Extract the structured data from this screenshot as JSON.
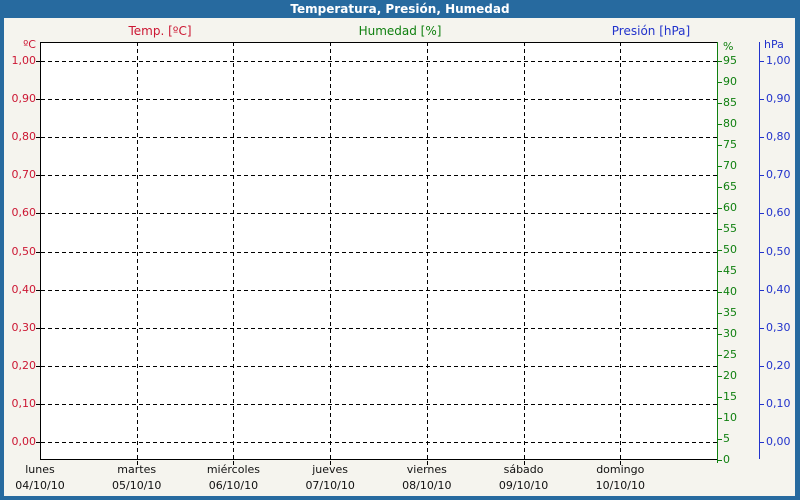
{
  "window": {
    "title": "Temperatura, Presión, Humedad"
  },
  "legend": {
    "temperature": "Temp. [ºC]",
    "humidity": "Humedad [%]",
    "pressure": "Presión [hPa]"
  },
  "axes": {
    "temperature": {
      "unit": "ºC",
      "ticks": [
        "1,00",
        "0,90",
        "0,80",
        "0,70",
        "0,60",
        "0,50",
        "0,40",
        "0,30",
        "0,20",
        "0,10",
        "0,00"
      ]
    },
    "humidity": {
      "unit": "%",
      "ticks": [
        "95",
        "90",
        "85",
        "80",
        "75",
        "70",
        "65",
        "60",
        "55",
        "50",
        "45",
        "40",
        "35",
        "30",
        "25",
        "20",
        "15",
        "10",
        "5",
        "0"
      ]
    },
    "pressure": {
      "unit": "hPa",
      "ticks": [
        "1,00",
        "0,90",
        "0,80",
        "0,70",
        "0,60",
        "0,50",
        "0,40",
        "0,30",
        "0,20",
        "0,10",
        "0,00"
      ]
    }
  },
  "x_axis": {
    "days": [
      {
        "name": "lunes",
        "date": "04/10/10"
      },
      {
        "name": "martes",
        "date": "05/10/10"
      },
      {
        "name": "miércoles",
        "date": "06/10/10"
      },
      {
        "name": "jueves",
        "date": "07/10/10"
      },
      {
        "name": "viernes",
        "date": "08/10/10"
      },
      {
        "name": "sábado",
        "date": "09/10/10"
      },
      {
        "name": "domingo",
        "date": "10/10/10"
      }
    ]
  },
  "colors": {
    "titlebar": "#276a9f",
    "window_bg": "#f5f4ee",
    "plot_bg": "#ffffff",
    "grid": "#000000",
    "temperature": "#cc1733",
    "humidity": "#108010",
    "pressure": "#2233cc"
  },
  "chart_data": {
    "type": "line",
    "title": "Temperatura, Presión, Humedad",
    "x": {
      "tick_days": [
        "lunes",
        "martes",
        "miércoles",
        "jueves",
        "viernes",
        "sábado",
        "domingo"
      ],
      "tick_dates": [
        "04/10/10",
        "05/10/10",
        "06/10/10",
        "07/10/10",
        "08/10/10",
        "09/10/10",
        "10/10/10"
      ]
    },
    "y_axes": [
      {
        "name": "Temp. [ºC]",
        "side": "left",
        "range": [
          0.0,
          1.0
        ],
        "tick_step": 0.1,
        "color": "#cc1733"
      },
      {
        "name": "Humedad [%]",
        "side": "right",
        "range": [
          0,
          100
        ],
        "tick_step": 5,
        "color": "#108010"
      },
      {
        "name": "Presión [hPa]",
        "side": "right",
        "range": [
          0.0,
          1.0
        ],
        "tick_step": 0.1,
        "color": "#2233cc"
      }
    ],
    "series": [
      {
        "name": "Temp. [ºC]",
        "values": []
      },
      {
        "name": "Humedad [%]",
        "values": []
      },
      {
        "name": "Presión [hPa]",
        "values": []
      }
    ],
    "grid": true,
    "legend_position": "top",
    "note": "empty plot area — no data points drawn"
  }
}
